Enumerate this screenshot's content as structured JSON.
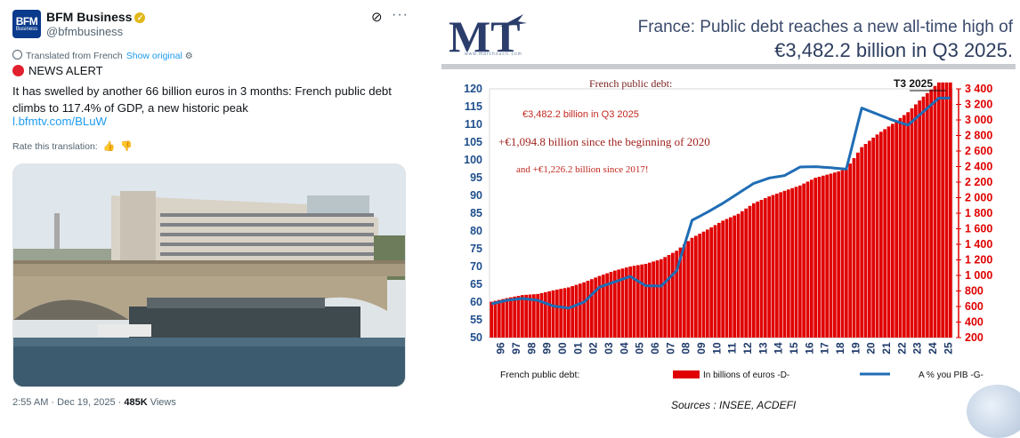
{
  "tweet": {
    "avatar": {
      "line1": "BFM",
      "line2": "Business"
    },
    "account_name": "BFM Business",
    "verified_icon": "verified-badge-icon",
    "handle": "@bfmbusiness",
    "translated_label": "Translated from French",
    "show_original_label": "Show original",
    "alert_label": "NEWS ALERT",
    "body": "It has swelled by another 66 billion euros in 3 months: French public debt climbs to 117.4% of GDP, a new historic peak",
    "link": "l.bfmtv.com/BLuW",
    "rate_label": "Rate this translation:",
    "timestamp": "2:55 AM · Dec 19, 2025 · ",
    "views_count": "485K",
    "views_label": "Views"
  },
  "chart_panel": {
    "logo_text": "MT",
    "logo_url": "www.marchoucli.com",
    "headline_line1": "France: Public debt reaches a new all-time high of",
    "headline_line2": "€3,482.2 billion in Q3 2025.",
    "sources": "Sources : INSEE, ACDEFI"
  },
  "chart_data": {
    "type": "bar",
    "annotations": {
      "title": "French public debt:",
      "line1": "€3,482.2 billion in Q3 2025",
      "line2": "+€1,094.8 billion since the beginning of 2020",
      "line3": "and +€1,226.2 billion since 2017!",
      "latest_label": "T3 2025"
    },
    "x_ticks": [
      "96",
      "97",
      "98",
      "99",
      "00",
      "01",
      "02",
      "03",
      "04",
      "05",
      "06",
      "07",
      "08",
      "09",
      "10",
      "11",
      "12",
      "13",
      "14",
      "15",
      "16",
      "17",
      "18",
      "19",
      "20",
      "21",
      "22",
      "23",
      "24",
      "25"
    ],
    "left_axis": {
      "min": 50,
      "max": 120,
      "ticks": [
        50,
        55,
        60,
        65,
        70,
        75,
        80,
        85,
        90,
        95,
        100,
        105,
        110,
        115,
        120
      ]
    },
    "right_axis": {
      "min": 200,
      "max": 3400,
      "ticks": [
        "200",
        "400",
        "600",
        "800",
        "1 000",
        "1 200",
        "1 400",
        "1 600",
        "1 800",
        "2 000",
        "2 200",
        "2 400",
        "2 600",
        "2 800",
        "3 000",
        "3 200",
        "3 400"
      ]
    },
    "series": [
      {
        "name": "In billions of euros -D-",
        "axis": "right",
        "color": "#e00000",
        "annual_values": [
          662,
          708,
          747,
          761,
          808,
          846,
          911,
          993,
          1062,
          1115,
          1149,
          1209,
          1317,
          1483,
          1590,
          1704,
          1792,
          1928,
          2016,
          2088,
          2157,
          2256,
          2309,
          2368,
          2650,
          2813,
          2950,
          3100,
          3300,
          3482
        ]
      },
      {
        "name": "A % you PIB -G-",
        "axis": "left",
        "color": "#1f6db5",
        "annual_values": [
          59.5,
          60.5,
          61.0,
          60.5,
          58.9,
          58.3,
          60.0,
          64.2,
          65.7,
          67.2,
          64.6,
          64.5,
          68.8,
          83.0,
          85.3,
          87.8,
          90.6,
          93.4,
          94.9,
          95.6,
          98.0,
          98.1,
          97.8,
          97.4,
          114.6,
          112.9,
          111.2,
          109.8,
          113.6,
          117.4
        ]
      }
    ],
    "legend": {
      "prefix": "French public debt:",
      "placement": "bottom"
    }
  }
}
